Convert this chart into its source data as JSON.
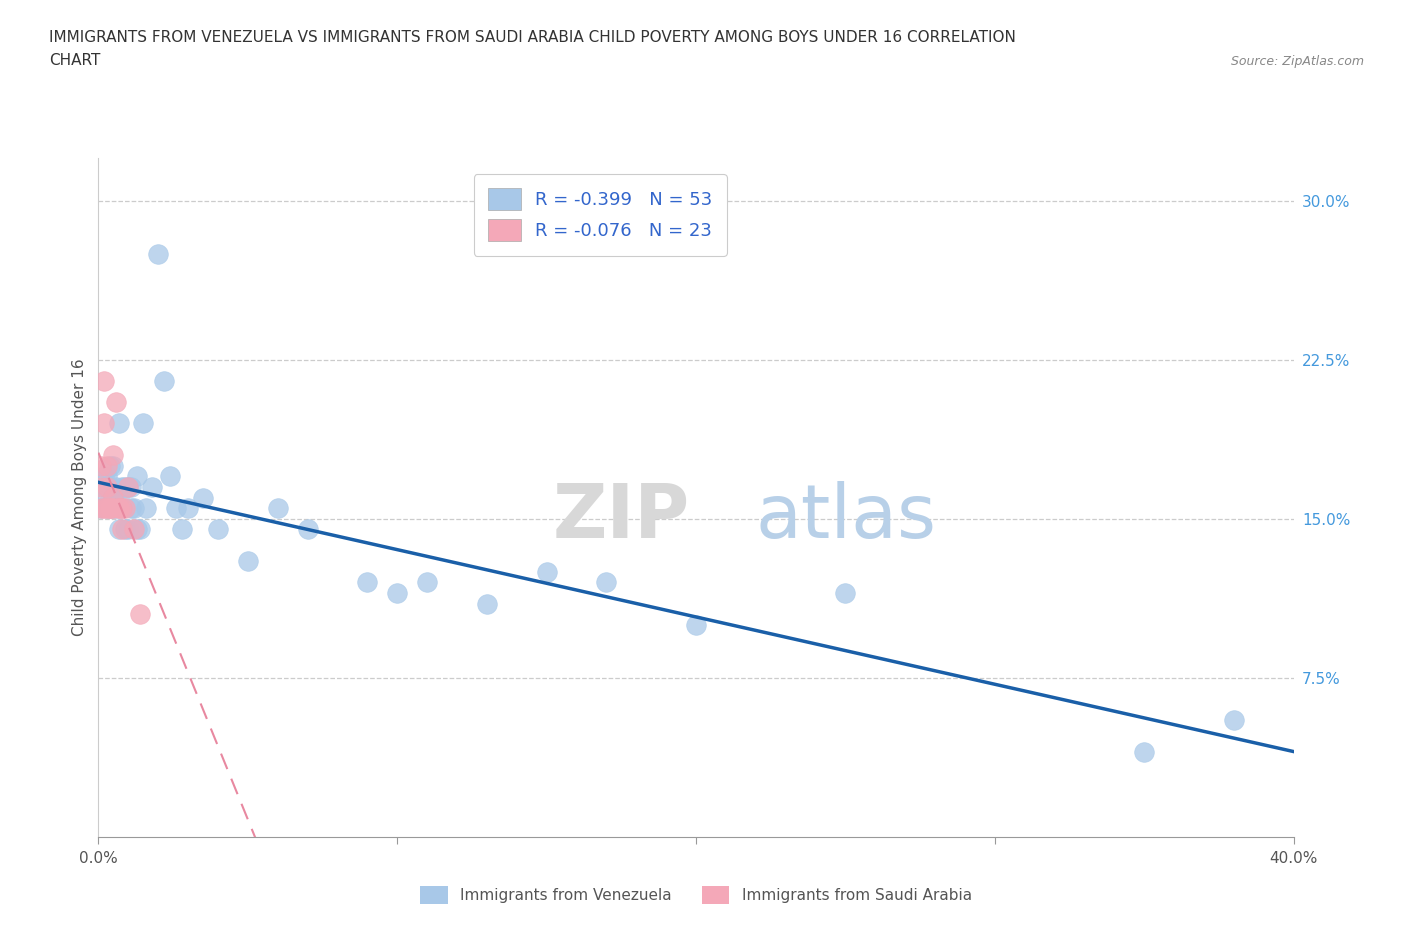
{
  "title_line1": "IMMIGRANTS FROM VENEZUELA VS IMMIGRANTS FROM SAUDI ARABIA CHILD POVERTY AMONG BOYS UNDER 16 CORRELATION",
  "title_line2": "CHART",
  "source_text": "Source: ZipAtlas.com",
  "ylabel": "Child Poverty Among Boys Under 16",
  "xlim": [
    0,
    0.4
  ],
  "ylim": [
    0,
    0.32
  ],
  "xticks": [
    0.0,
    0.1,
    0.2,
    0.3,
    0.4
  ],
  "xticklabels": [
    "0.0%",
    "",
    "",
    "",
    "40.0%"
  ],
  "yticks_right": [
    0.075,
    0.15,
    0.225,
    0.3
  ],
  "ytick_right_labels": [
    "7.5%",
    "15.0%",
    "22.5%",
    "30.0%"
  ],
  "blue_color": "#a8c8e8",
  "pink_color": "#f4a8b8",
  "trend_blue": "#1a5fa8",
  "trend_pink": "#e888a0",
  "venezuela_x": [
    0.001,
    0.002,
    0.002,
    0.003,
    0.003,
    0.003,
    0.004,
    0.004,
    0.004,
    0.005,
    0.005,
    0.005,
    0.006,
    0.006,
    0.007,
    0.007,
    0.007,
    0.008,
    0.008,
    0.009,
    0.009,
    0.01,
    0.01,
    0.011,
    0.011,
    0.012,
    0.013,
    0.013,
    0.014,
    0.015,
    0.016,
    0.018,
    0.02,
    0.022,
    0.024,
    0.026,
    0.028,
    0.03,
    0.035,
    0.04,
    0.05,
    0.06,
    0.07,
    0.09,
    0.1,
    0.11,
    0.13,
    0.15,
    0.17,
    0.2,
    0.25,
    0.35,
    0.38
  ],
  "venezuela_y": [
    0.155,
    0.17,
    0.165,
    0.155,
    0.16,
    0.17,
    0.155,
    0.165,
    0.175,
    0.155,
    0.16,
    0.175,
    0.155,
    0.165,
    0.145,
    0.16,
    0.195,
    0.155,
    0.165,
    0.145,
    0.165,
    0.145,
    0.165,
    0.155,
    0.165,
    0.155,
    0.145,
    0.17,
    0.145,
    0.195,
    0.155,
    0.165,
    0.275,
    0.215,
    0.17,
    0.155,
    0.145,
    0.155,
    0.16,
    0.145,
    0.13,
    0.155,
    0.145,
    0.12,
    0.115,
    0.12,
    0.11,
    0.125,
    0.12,
    0.1,
    0.115,
    0.04,
    0.055
  ],
  "saudi_x": [
    0.001,
    0.001,
    0.001,
    0.002,
    0.002,
    0.002,
    0.003,
    0.003,
    0.003,
    0.004,
    0.004,
    0.005,
    0.005,
    0.005,
    0.006,
    0.007,
    0.007,
    0.008,
    0.008,
    0.009,
    0.01,
    0.012,
    0.014
  ],
  "saudi_y": [
    0.155,
    0.165,
    0.175,
    0.155,
    0.215,
    0.195,
    0.155,
    0.165,
    0.175,
    0.155,
    0.155,
    0.155,
    0.16,
    0.18,
    0.205,
    0.155,
    0.155,
    0.145,
    0.155,
    0.155,
    0.165,
    0.145,
    0.105
  ]
}
